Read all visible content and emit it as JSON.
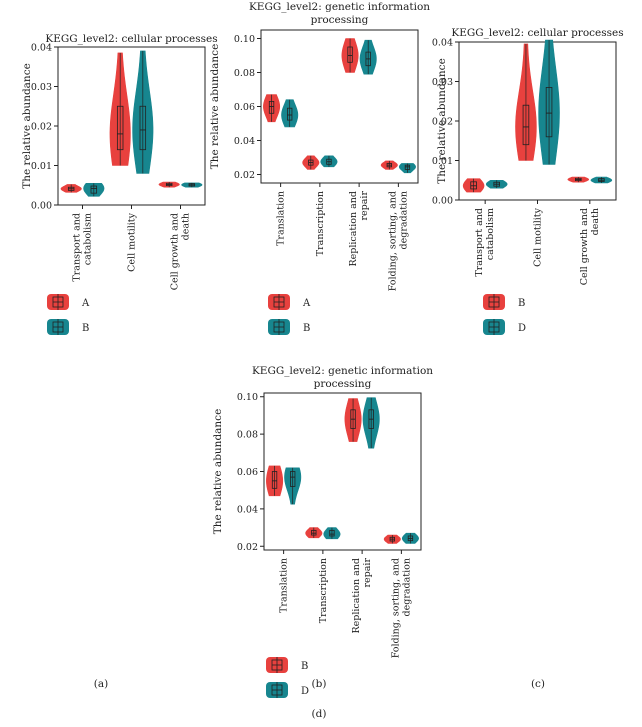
{
  "colors": {
    "series_a": "#e8413e",
    "series_b": "#17868f"
  },
  "chart_data": [
    {
      "type": "violin",
      "panel_label": "(a)",
      "title": [
        "KEGG_level2: cellular processes"
      ],
      "ylabel": "The relative abundance",
      "ylim": [
        0,
        0.04
      ],
      "yticks": [
        "0.00",
        "0.01",
        "0.02",
        "0.03",
        "0.04"
      ],
      "categories": [
        [
          "Transport and",
          "catabolism"
        ],
        [
          "Cell motility"
        ],
        [
          "Cell growth and",
          "death"
        ]
      ],
      "series": [
        {
          "name": "A",
          "groups": [
            {
              "min": 0.0032,
              "q1": 0.0037,
              "median": 0.0041,
              "q3": 0.0045,
              "max": 0.0052
            },
            {
              "min": 0.01,
              "q1": 0.014,
              "median": 0.018,
              "q3": 0.025,
              "max": 0.0385
            },
            {
              "min": 0.0045,
              "q1": 0.0049,
              "median": 0.0052,
              "q3": 0.0055,
              "max": 0.0058
            }
          ]
        },
        {
          "name": "B",
          "groups": [
            {
              "min": 0.0022,
              "q1": 0.003,
              "median": 0.0042,
              "q3": 0.0048,
              "max": 0.0055
            },
            {
              "min": 0.008,
              "q1": 0.014,
              "median": 0.019,
              "q3": 0.025,
              "max": 0.039
            },
            {
              "min": 0.0045,
              "q1": 0.0048,
              "median": 0.0051,
              "q3": 0.0054,
              "max": 0.0056
            }
          ]
        }
      ]
    },
    {
      "type": "violin",
      "panel_label": "(b)",
      "title": [
        "KEGG_level2: genetic information",
        "processing"
      ],
      "ylabel": "The relative abundance",
      "ylim": [
        0.015,
        0.105
      ],
      "yticks": [
        "0.02",
        "0.04",
        "0.06",
        "0.08",
        "0.10"
      ],
      "categories": [
        [
          "Translation"
        ],
        [
          "Transcription"
        ],
        [
          "Replication and",
          "repair"
        ],
        [
          "Folding, sorting, and",
          "degradation"
        ]
      ],
      "series": [
        {
          "name": "A",
          "groups": [
            {
              "min": 0.051,
              "q1": 0.056,
              "median": 0.06,
              "q3": 0.063,
              "max": 0.067
            },
            {
              "min": 0.023,
              "q1": 0.0255,
              "median": 0.027,
              "q3": 0.0285,
              "max": 0.031
            },
            {
              "min": 0.08,
              "q1": 0.086,
              "median": 0.09,
              "q3": 0.095,
              "max": 0.1
            },
            {
              "min": 0.023,
              "q1": 0.0245,
              "median": 0.0255,
              "q3": 0.0265,
              "max": 0.028
            }
          ]
        },
        {
          "name": "B",
          "groups": [
            {
              "min": 0.048,
              "q1": 0.052,
              "median": 0.055,
              "q3": 0.059,
              "max": 0.064
            },
            {
              "min": 0.0245,
              "q1": 0.026,
              "median": 0.0275,
              "q3": 0.029,
              "max": 0.031
            },
            {
              "min": 0.079,
              "q1": 0.084,
              "median": 0.088,
              "q3": 0.092,
              "max": 0.099
            },
            {
              "min": 0.021,
              "q1": 0.023,
              "median": 0.0245,
              "q3": 0.0255,
              "max": 0.0265
            }
          ]
        }
      ]
    },
    {
      "type": "violin",
      "panel_label": "(c)",
      "title": [
        "KEGG_level2: cellular processes"
      ],
      "ylabel": "The relative abundance",
      "ylim": [
        0,
        0.04
      ],
      "yticks": [
        "0.00",
        "0.01",
        "0.02",
        "0.03",
        "0.04"
      ],
      "categories": [
        [
          "Transport and",
          "catabolism"
        ],
        [
          "Cell motility"
        ],
        [
          "Cell growth and",
          "death"
        ]
      ],
      "series": [
        {
          "name": "B",
          "groups": [
            {
              "min": 0.002,
              "q1": 0.0028,
              "median": 0.0036,
              "q3": 0.0046,
              "max": 0.0054
            },
            {
              "min": 0.01,
              "q1": 0.014,
              "median": 0.0185,
              "q3": 0.024,
              "max": 0.0395
            },
            {
              "min": 0.0045,
              "q1": 0.0049,
              "median": 0.0052,
              "q3": 0.0055,
              "max": 0.0058
            }
          ]
        },
        {
          "name": "D",
          "groups": [
            {
              "min": 0.003,
              "q1": 0.0035,
              "median": 0.004,
              "q3": 0.0045,
              "max": 0.005
            },
            {
              "min": 0.009,
              "q1": 0.016,
              "median": 0.022,
              "q3": 0.0285,
              "max": 0.0405
            },
            {
              "min": 0.0043,
              "q1": 0.0047,
              "median": 0.005,
              "q3": 0.0054,
              "max": 0.0058
            }
          ]
        }
      ]
    },
    {
      "type": "violin",
      "panel_label": "(d)",
      "title": [
        "KEGG_level2: genetic information",
        "processing"
      ],
      "ylabel": "The relative abundance",
      "ylim": [
        0.018,
        0.102
      ],
      "yticks": [
        "0.02",
        "0.04",
        "0.06",
        "0.08",
        "0.10"
      ],
      "categories": [
        [
          "Translation"
        ],
        [
          "Transcription"
        ],
        [
          "Replication and",
          "repair"
        ],
        [
          "Folding, sorting, and",
          "degradation"
        ]
      ],
      "series": [
        {
          "name": "B",
          "groups": [
            {
              "min": 0.047,
              "q1": 0.051,
              "median": 0.055,
              "q3": 0.06,
              "max": 0.063
            },
            {
              "min": 0.0245,
              "q1": 0.026,
              "median": 0.027,
              "q3": 0.0285,
              "max": 0.03
            },
            {
              "min": 0.076,
              "q1": 0.083,
              "median": 0.088,
              "q3": 0.093,
              "max": 0.099
            },
            {
              "min": 0.0215,
              "q1": 0.0228,
              "median": 0.0238,
              "q3": 0.0248,
              "max": 0.026
            }
          ]
        },
        {
          "name": "D",
          "groups": [
            {
              "min": 0.0425,
              "q1": 0.052,
              "median": 0.057,
              "q3": 0.06,
              "max": 0.062
            },
            {
              "min": 0.024,
              "q1": 0.0255,
              "median": 0.0265,
              "q3": 0.0285,
              "max": 0.03
            },
            {
              "min": 0.0725,
              "q1": 0.083,
              "median": 0.088,
              "q3": 0.093,
              "max": 0.0995
            },
            {
              "min": 0.0215,
              "q1": 0.023,
              "median": 0.0242,
              "q3": 0.0255,
              "max": 0.027
            }
          ]
        }
      ]
    }
  ]
}
